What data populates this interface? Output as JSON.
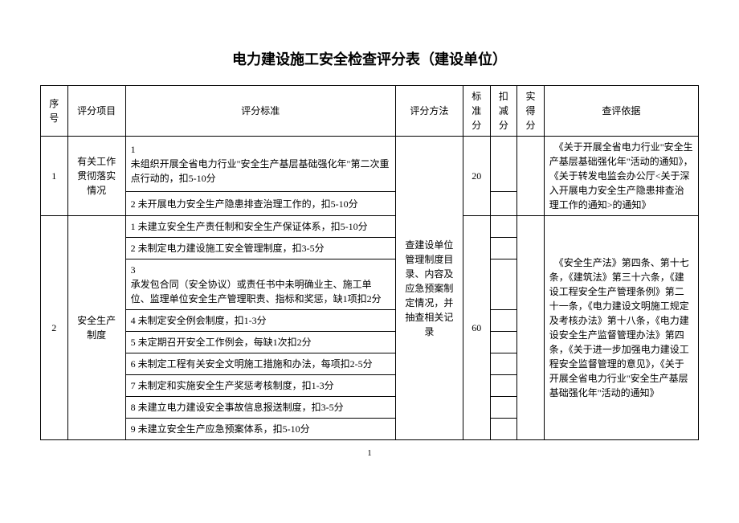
{
  "title": "电力建设施工安全检查评分表（建设单位）",
  "headers": {
    "seq": "序号",
    "item": "评分项目",
    "criteria": "评分标准",
    "method": "评分方法",
    "std": "标准分",
    "deduct": "扣减分",
    "actual": "实得分",
    "basis": "查评依据"
  },
  "row1": {
    "seq": "1",
    "item": "有关工作贯彻落实情况",
    "criteria1_num": "1",
    "criteria1": "未组织开展全省电力行业\"安全生产基层基础强化年\"第二次重点行动的，扣5-10分",
    "criteria2": "2 未开展电力安全生产隐患排查治理工作的，扣5-10分",
    "std": "20",
    "basis": "　《关于开展全省电力行业\"安全生产基层基础强化年\"活动的通知》，《关于转发电监会办公厅<关于深入开展电力安全生产隐患排查治理工作的通知>的通知》"
  },
  "row2": {
    "seq": "2",
    "item": "安全生产制度",
    "c1": "1 未建立安全生产责任制和安全生产保证体系，扣5-10分",
    "c2": "2 未制定电力建设施工安全管理制度，扣3-5分",
    "c3_num": "3",
    "c3": "承发包合同（安全协议）或责任书中未明确业主、施工单位、监理单位安全生产管理职责、指标和奖惩，缺1项扣2分",
    "c4": "4 未制定安全例会制度，扣1-3分",
    "c5": "5 未定期召开安全工作例会，每缺1次扣2分",
    "c6": "6 未制定工程有关安全文明施工措施和办法，每项扣2-5分",
    "c7": "7 未制定和实施安全生产奖惩考核制度，扣1-3分",
    "c8": "8 未建立电力建设安全事故信息报送制度，扣3-5分",
    "c9": "9 未建立安全生产应急预案体系，扣5-10分",
    "method": "查建设单位管理制度目录、内容及应急预案制定情况，并抽查相关记录",
    "std": "60",
    "basis": "　《安全生产法》第四条、第十七条，《建筑法》第三十六条，《建设工程安全生产管理条例》第二十一条，《电力建设文明施工规定及考核办法》第十八条，《电力建设安全生产监督管理办法》第四条，《关于进一步加强电力建设工程安全监督管理的意见》，《关于开展全省电力行业\"安全生产基层基础强化年\"活动的通知》"
  },
  "pageNum": "1"
}
